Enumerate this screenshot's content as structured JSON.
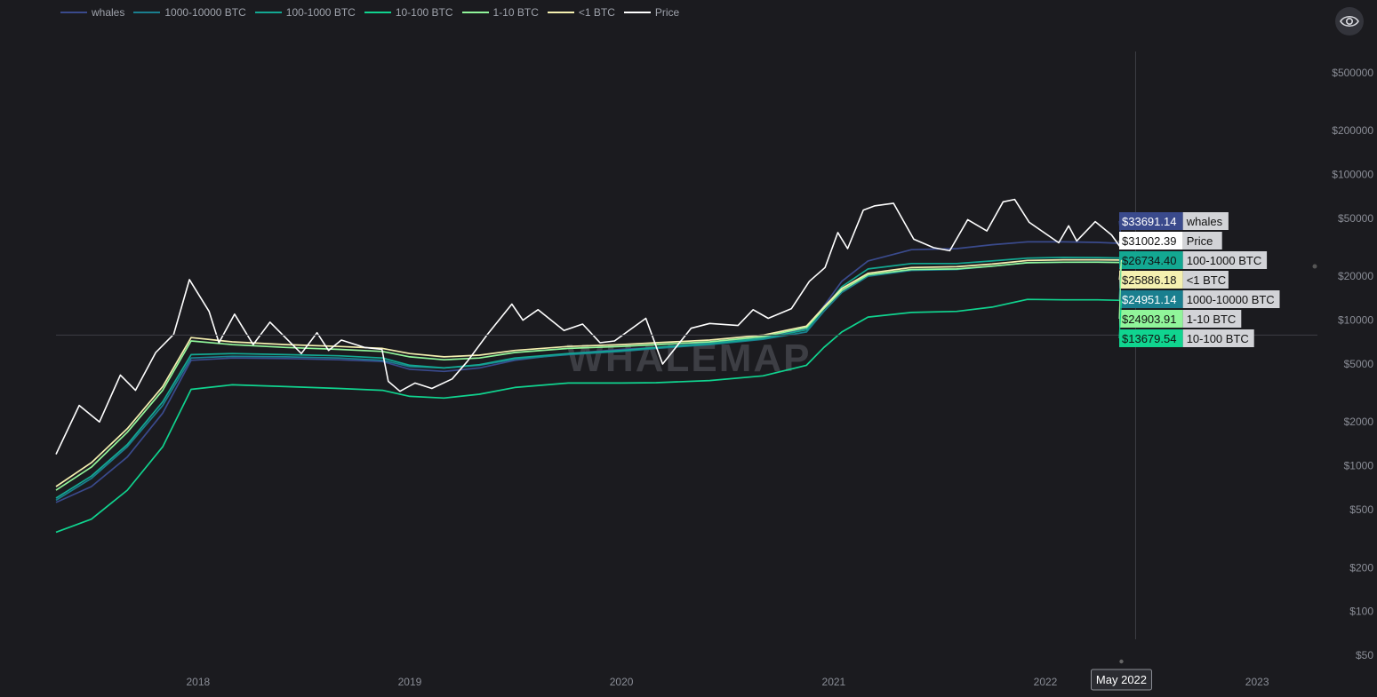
{
  "eye_icon": "eye-icon",
  "chart_data": {
    "type": "line",
    "yscale": "log",
    "ylim": [
      50,
      700000
    ],
    "xlim": [
      "2017-05-01",
      "2023-04-15"
    ],
    "yticks": [
      {
        "value": 50,
        "label": "$50"
      },
      {
        "value": 100,
        "label": "$100"
      },
      {
        "value": 200,
        "label": "$200"
      },
      {
        "value": 500,
        "label": "$500"
      },
      {
        "value": 1000,
        "label": "$1000"
      },
      {
        "value": 2000,
        "label": "$2000"
      },
      {
        "value": 5000,
        "label": "$5000"
      },
      {
        "value": 10000,
        "label": "$10000"
      },
      {
        "value": 20000,
        "label": "$20000"
      },
      {
        "value": 50000,
        "label": "$50000"
      },
      {
        "value": 100000,
        "label": "$100000"
      },
      {
        "value": 200000,
        "label": "$200000"
      },
      {
        "value": 500000,
        "label": "$500000"
      }
    ],
    "xticks": [
      {
        "date": "2018-01-01",
        "label": "2018"
      },
      {
        "date": "2019-01-01",
        "label": "2019"
      },
      {
        "date": "2020-01-01",
        "label": "2020"
      },
      {
        "date": "2021-01-01",
        "label": "2021"
      },
      {
        "date": "2022-01-01",
        "label": "2022"
      },
      {
        "date": "2023-01-01",
        "label": "2023"
      }
    ],
    "crosshair": {
      "date": "2022-05-12",
      "label": "May 2022",
      "price_level": 7900
    },
    "watermark": "WHALEMAP",
    "series": [
      {
        "name": "whales",
        "color": "#3a4a8c",
        "last_label": "$33691.14",
        "points": [
          [
            "2017-05-01",
            560
          ],
          [
            "2017-07-01",
            720
          ],
          [
            "2017-09-01",
            1150
          ],
          [
            "2017-11-01",
            2300
          ],
          [
            "2017-12-20",
            5300
          ],
          [
            "2018-03-01",
            5500
          ],
          [
            "2018-06-01",
            5450
          ],
          [
            "2018-09-01",
            5350
          ],
          [
            "2018-11-15",
            5200
          ],
          [
            "2019-01-01",
            4600
          ],
          [
            "2019-03-01",
            4450
          ],
          [
            "2019-05-01",
            4700
          ],
          [
            "2019-07-01",
            5300
          ],
          [
            "2019-10-01",
            5900
          ],
          [
            "2020-01-01",
            6300
          ],
          [
            "2020-03-01",
            6500
          ],
          [
            "2020-06-01",
            7000
          ],
          [
            "2020-09-01",
            7600
          ],
          [
            "2020-11-15",
            8800
          ],
          [
            "2020-12-15",
            12500
          ],
          [
            "2021-01-15",
            18500
          ],
          [
            "2021-03-01",
            25500
          ],
          [
            "2021-05-15",
            30500
          ],
          [
            "2021-08-01",
            31000
          ],
          [
            "2021-10-01",
            33000
          ],
          [
            "2021-12-01",
            34500
          ],
          [
            "2022-02-01",
            34500
          ],
          [
            "2022-04-01",
            34200
          ],
          [
            "2022-05-12",
            33691.14
          ]
        ]
      },
      {
        "name": "1000-10000 BTC",
        "color": "#1a7f8f",
        "last_label": "$24951.14",
        "points": [
          [
            "2017-05-01",
            580
          ],
          [
            "2017-07-01",
            820
          ],
          [
            "2017-09-01",
            1350
          ],
          [
            "2017-11-01",
            2600
          ],
          [
            "2017-12-20",
            5500
          ],
          [
            "2018-03-01",
            5650
          ],
          [
            "2018-06-01",
            5600
          ],
          [
            "2018-09-01",
            5500
          ],
          [
            "2018-11-15",
            5300
          ],
          [
            "2019-01-01",
            4800
          ],
          [
            "2019-03-01",
            4700
          ],
          [
            "2019-05-01",
            4900
          ],
          [
            "2019-07-01",
            5400
          ],
          [
            "2019-10-01",
            5800
          ],
          [
            "2020-01-01",
            6100
          ],
          [
            "2020-03-01",
            6400
          ],
          [
            "2020-06-01",
            6800
          ],
          [
            "2020-09-01",
            7400
          ],
          [
            "2020-11-15",
            8300
          ],
          [
            "2020-12-15",
            11500
          ],
          [
            "2021-01-15",
            15500
          ],
          [
            "2021-03-01",
            20000
          ],
          [
            "2021-05-15",
            22000
          ],
          [
            "2021-08-01",
            22300
          ],
          [
            "2021-10-01",
            23500
          ],
          [
            "2021-12-01",
            24800
          ],
          [
            "2022-02-01",
            25000
          ],
          [
            "2022-04-01",
            25100
          ],
          [
            "2022-05-12",
            24951.14
          ]
        ]
      },
      {
        "name": "100-1000 BTC",
        "color": "#13a892",
        "last_label": "$26734.40",
        "points": [
          [
            "2017-05-01",
            600
          ],
          [
            "2017-07-01",
            850
          ],
          [
            "2017-09-01",
            1400
          ],
          [
            "2017-11-01",
            2750
          ],
          [
            "2017-12-20",
            5800
          ],
          [
            "2018-03-01",
            5900
          ],
          [
            "2018-06-01",
            5800
          ],
          [
            "2018-09-01",
            5700
          ],
          [
            "2018-11-15",
            5500
          ],
          [
            "2019-01-01",
            4900
          ],
          [
            "2019-03-01",
            4700
          ],
          [
            "2019-05-01",
            4950
          ],
          [
            "2019-07-01",
            5500
          ],
          [
            "2019-10-01",
            5900
          ],
          [
            "2020-01-01",
            6200
          ],
          [
            "2020-03-01",
            6500
          ],
          [
            "2020-06-01",
            6900
          ],
          [
            "2020-09-01",
            7500
          ],
          [
            "2020-11-15",
            8600
          ],
          [
            "2020-12-15",
            12000
          ],
          [
            "2021-01-15",
            17000
          ],
          [
            "2021-03-01",
            22500
          ],
          [
            "2021-05-15",
            24500
          ],
          [
            "2021-08-01",
            24500
          ],
          [
            "2021-10-01",
            25500
          ],
          [
            "2021-12-01",
            26700
          ],
          [
            "2022-02-01",
            27000
          ],
          [
            "2022-04-01",
            26900
          ],
          [
            "2022-05-12",
            26734.4
          ]
        ]
      },
      {
        "name": "10-100 BTC",
        "color": "#10d48f",
        "last_label": "$13679.54",
        "points": [
          [
            "2017-05-01",
            350
          ],
          [
            "2017-07-01",
            430
          ],
          [
            "2017-09-01",
            680
          ],
          [
            "2017-11-01",
            1350
          ],
          [
            "2017-12-20",
            3350
          ],
          [
            "2018-03-01",
            3600
          ],
          [
            "2018-06-01",
            3500
          ],
          [
            "2018-09-01",
            3400
          ],
          [
            "2018-11-15",
            3300
          ],
          [
            "2019-01-01",
            3000
          ],
          [
            "2019-03-01",
            2920
          ],
          [
            "2019-05-01",
            3100
          ],
          [
            "2019-07-01",
            3450
          ],
          [
            "2019-10-01",
            3700
          ],
          [
            "2020-01-01",
            3700
          ],
          [
            "2020-03-01",
            3720
          ],
          [
            "2020-06-01",
            3850
          ],
          [
            "2020-09-01",
            4150
          ],
          [
            "2020-11-15",
            4900
          ],
          [
            "2020-12-15",
            6500
          ],
          [
            "2021-01-15",
            8300
          ],
          [
            "2021-03-01",
            10500
          ],
          [
            "2021-05-15",
            11300
          ],
          [
            "2021-08-01",
            11500
          ],
          [
            "2021-10-01",
            12300
          ],
          [
            "2021-12-01",
            13900
          ],
          [
            "2022-02-01",
            13800
          ],
          [
            "2022-04-01",
            13800
          ],
          [
            "2022-05-12",
            13679.54
          ]
        ]
      },
      {
        "name": "1-10 BTC",
        "color": "#90f59a",
        "last_label": "$24903.91",
        "points": [
          [
            "2017-05-01",
            680
          ],
          [
            "2017-07-01",
            980
          ],
          [
            "2017-09-01",
            1700
          ],
          [
            "2017-11-01",
            3300
          ],
          [
            "2017-12-20",
            7200
          ],
          [
            "2018-03-01",
            6800
          ],
          [
            "2018-06-01",
            6500
          ],
          [
            "2018-09-01",
            6300
          ],
          [
            "2018-11-15",
            6100
          ],
          [
            "2019-01-01",
            5600
          ],
          [
            "2019-03-01",
            5350
          ],
          [
            "2019-05-01",
            5500
          ],
          [
            "2019-07-01",
            6000
          ],
          [
            "2019-10-01",
            6400
          ],
          [
            "2020-01-01",
            6600
          ],
          [
            "2020-03-01",
            6800
          ],
          [
            "2020-06-01",
            7100
          ],
          [
            "2020-09-01",
            7700
          ],
          [
            "2020-11-15",
            8900
          ],
          [
            "2020-12-15",
            12000
          ],
          [
            "2021-01-15",
            16000
          ],
          [
            "2021-03-01",
            20500
          ],
          [
            "2021-05-15",
            22300
          ],
          [
            "2021-08-01",
            22500
          ],
          [
            "2021-10-01",
            23500
          ],
          [
            "2021-12-01",
            24800
          ],
          [
            "2022-02-01",
            25000
          ],
          [
            "2022-04-01",
            25000
          ],
          [
            "2022-05-12",
            24903.91
          ]
        ]
      },
      {
        "name": "<1 BTC",
        "color": "#f5f0b0",
        "last_label": "$25886.18",
        "points": [
          [
            "2017-05-01",
            720
          ],
          [
            "2017-07-01",
            1050
          ],
          [
            "2017-09-01",
            1800
          ],
          [
            "2017-11-01",
            3500
          ],
          [
            "2017-12-20",
            7600
          ],
          [
            "2018-03-01",
            7100
          ],
          [
            "2018-06-01",
            6800
          ],
          [
            "2018-09-01",
            6600
          ],
          [
            "2018-11-15",
            6400
          ],
          [
            "2019-01-01",
            5900
          ],
          [
            "2019-03-01",
            5600
          ],
          [
            "2019-05-01",
            5750
          ],
          [
            "2019-07-01",
            6200
          ],
          [
            "2019-10-01",
            6600
          ],
          [
            "2020-01-01",
            6800
          ],
          [
            "2020-03-01",
            7000
          ],
          [
            "2020-06-01",
            7300
          ],
          [
            "2020-09-01",
            7900
          ],
          [
            "2020-11-15",
            9100
          ],
          [
            "2020-12-15",
            12300
          ],
          [
            "2021-01-15",
            16500
          ],
          [
            "2021-03-01",
            21000
          ],
          [
            "2021-05-15",
            23000
          ],
          [
            "2021-08-01",
            23300
          ],
          [
            "2021-10-01",
            24300
          ],
          [
            "2021-12-01",
            25700
          ],
          [
            "2022-02-01",
            26000
          ],
          [
            "2022-04-01",
            26000
          ],
          [
            "2022-05-12",
            25886.18
          ]
        ]
      },
      {
        "name": "Price",
        "color": "#ffffff",
        "last_label": "$31002.39",
        "points": [
          [
            "2017-05-01",
            1200
          ],
          [
            "2017-06-10",
            2600
          ],
          [
            "2017-07-15",
            2000
          ],
          [
            "2017-08-20",
            4200
          ],
          [
            "2017-09-15",
            3300
          ],
          [
            "2017-10-20",
            6000
          ],
          [
            "2017-11-20",
            8000
          ],
          [
            "2017-12-17",
            19000
          ],
          [
            "2018-01-20",
            11500
          ],
          [
            "2018-02-06",
            7000
          ],
          [
            "2018-03-05",
            11000
          ],
          [
            "2018-04-06",
            6800
          ],
          [
            "2018-05-05",
            9700
          ],
          [
            "2018-06-28",
            5900
          ],
          [
            "2018-07-25",
            8200
          ],
          [
            "2018-08-14",
            6200
          ],
          [
            "2018-09-05",
            7300
          ],
          [
            "2018-10-15",
            6500
          ],
          [
            "2018-11-14",
            6300
          ],
          [
            "2018-11-25",
            3800
          ],
          [
            "2018-12-15",
            3250
          ],
          [
            "2019-01-10",
            3700
          ],
          [
            "2019-02-08",
            3400
          ],
          [
            "2019-03-15",
            3950
          ],
          [
            "2019-04-10",
            5200
          ],
          [
            "2019-05-15",
            8000
          ],
          [
            "2019-06-26",
            12900
          ],
          [
            "2019-07-15",
            10000
          ],
          [
            "2019-08-10",
            11800
          ],
          [
            "2019-09-24",
            8500
          ],
          [
            "2019-10-26",
            9400
          ],
          [
            "2019-11-25",
            7000
          ],
          [
            "2019-12-20",
            7200
          ],
          [
            "2020-02-12",
            10300
          ],
          [
            "2020-03-12",
            5000
          ],
          [
            "2020-04-30",
            8800
          ],
          [
            "2020-06-01",
            9500
          ],
          [
            "2020-07-20",
            9200
          ],
          [
            "2020-08-15",
            11800
          ],
          [
            "2020-09-10",
            10300
          ],
          [
            "2020-10-20",
            12000
          ],
          [
            "2020-11-20",
            18500
          ],
          [
            "2020-12-17",
            23000
          ],
          [
            "2021-01-08",
            40000
          ],
          [
            "2021-01-25",
            31000
          ],
          [
            "2021-02-21",
            57000
          ],
          [
            "2021-03-13",
            61000
          ],
          [
            "2021-04-14",
            63500
          ],
          [
            "2021-05-19",
            36000
          ],
          [
            "2021-06-22",
            31500
          ],
          [
            "2021-07-20",
            30000
          ],
          [
            "2021-08-20",
            49000
          ],
          [
            "2021-09-22",
            41000
          ],
          [
            "2021-10-20",
            65000
          ],
          [
            "2021-11-09",
            67500
          ],
          [
            "2021-12-04",
            47000
          ],
          [
            "2022-01-24",
            34000
          ],
          [
            "2022-02-10",
            44500
          ],
          [
            "2022-02-24",
            35000
          ],
          [
            "2022-03-28",
            47500
          ],
          [
            "2022-04-25",
            38500
          ],
          [
            "2022-05-12",
            31002.39
          ]
        ]
      }
    ]
  }
}
